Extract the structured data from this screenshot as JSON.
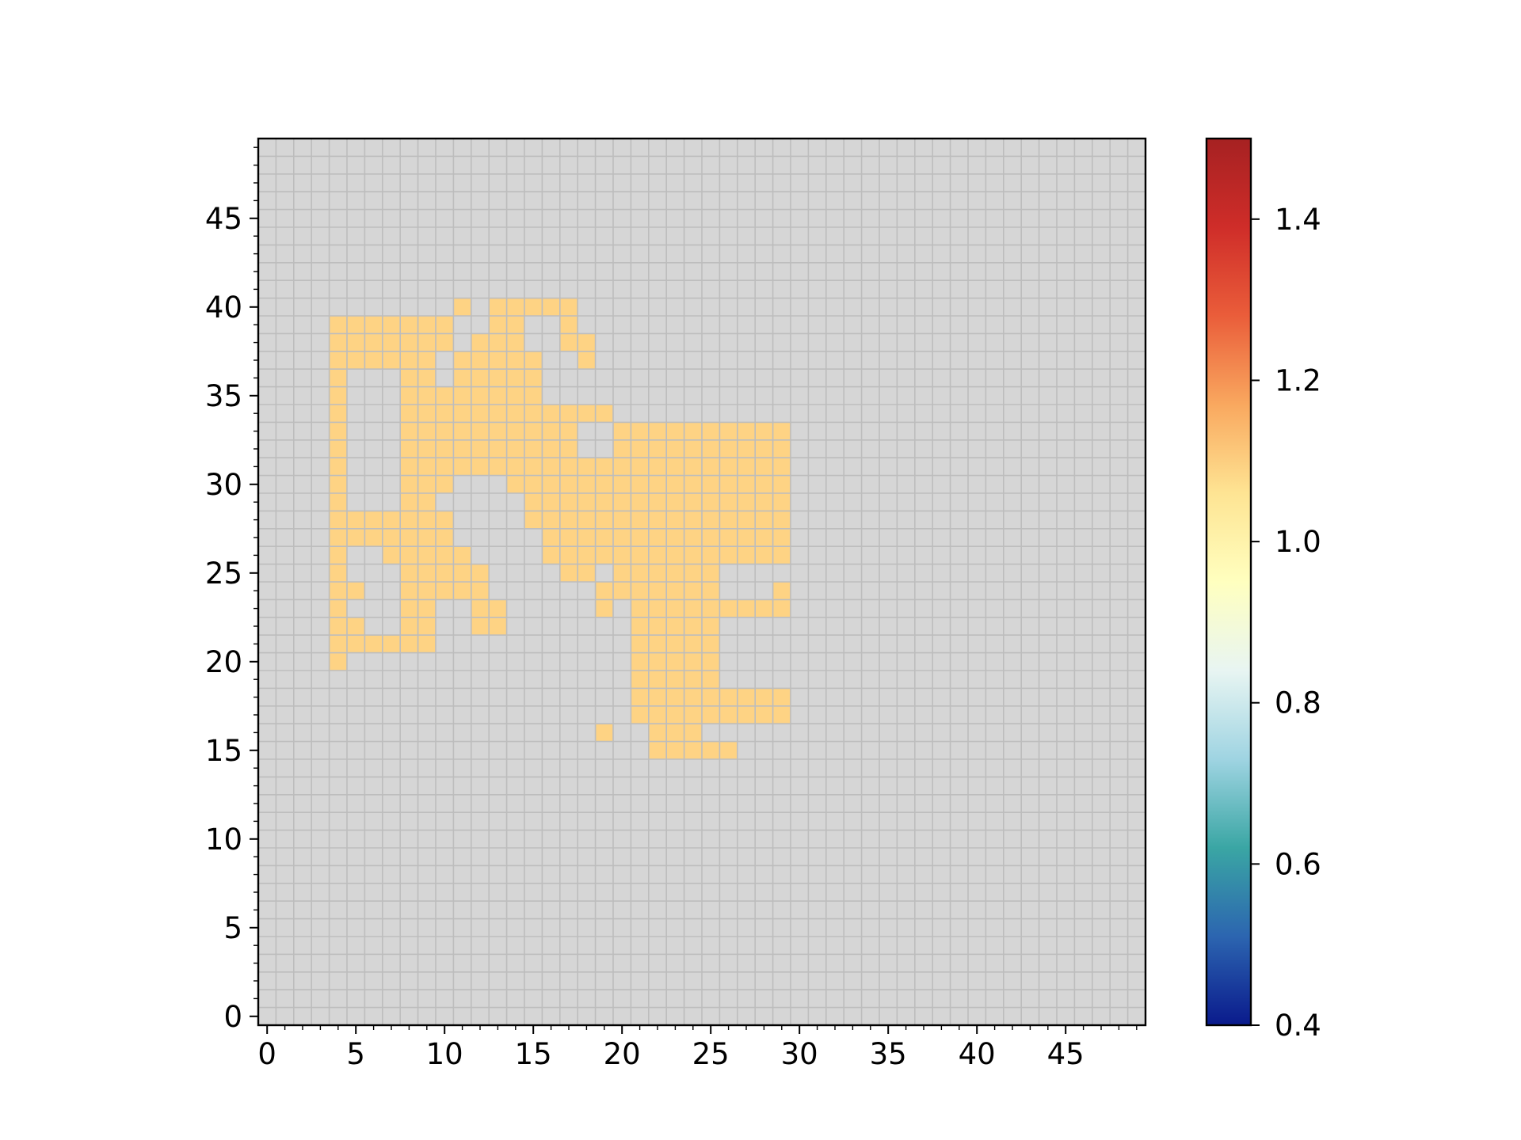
{
  "chart_data": {
    "type": "heatmap",
    "title": "",
    "xlabel": "",
    "ylabel": "",
    "xlim": [
      -0.5,
      49.5
    ],
    "ylim": [
      -0.5,
      49.5
    ],
    "grid": true,
    "colors": {
      "background_cell": "#d6d6d6",
      "gridline": "#bdbdbd",
      "value_1_cell": "#fed384"
    },
    "xticks": [
      0,
      5,
      10,
      15,
      20,
      25,
      30,
      35,
      40,
      45
    ],
    "xtick_labels": [
      "0",
      "5",
      "10",
      "15",
      "20",
      "25",
      "30",
      "35",
      "40",
      "45"
    ],
    "yticks": [
      0,
      5,
      10,
      15,
      20,
      25,
      30,
      35,
      40,
      45
    ],
    "ytick_labels": [
      "0",
      "5",
      "10",
      "15",
      "20",
      "25",
      "30",
      "35",
      "40",
      "45"
    ],
    "colorbar": {
      "colormap": "RdYlBu_r",
      "range": [
        0.4,
        1.5
      ],
      "ticks": [
        0.4,
        0.6,
        0.8,
        1.0,
        1.2,
        1.4
      ],
      "tick_labels": [
        "0.4",
        "0.6",
        "0.8",
        "1.0",
        "1.2",
        "1.4"
      ],
      "stops": [
        "#0a1a8c",
        "#2c65b0",
        "#3aa6a4",
        "#9fd4e2",
        "#e8f5f2",
        "#ffffbf",
        "#fee493",
        "#f9a85f",
        "#ea5d3a",
        "#cf2d29",
        "#a62122"
      ]
    },
    "value": 1.0,
    "rows": [
      {
        "y": 40,
        "x": [
          [
            11,
            11
          ],
          [
            13,
            17
          ]
        ]
      },
      {
        "y": 39,
        "x": [
          [
            4,
            10
          ],
          [
            13,
            14
          ],
          [
            17,
            17
          ]
        ]
      },
      {
        "y": 38,
        "x": [
          [
            4,
            10
          ],
          [
            12,
            14
          ],
          [
            17,
            18
          ]
        ]
      },
      {
        "y": 37,
        "x": [
          [
            4,
            9
          ],
          [
            11,
            15
          ],
          [
            18,
            18
          ]
        ]
      },
      {
        "y": 36,
        "x": [
          [
            4,
            4
          ],
          [
            8,
            9
          ],
          [
            11,
            15
          ]
        ]
      },
      {
        "y": 35,
        "x": [
          [
            4,
            4
          ],
          [
            8,
            9
          ],
          [
            10,
            15
          ]
        ]
      },
      {
        "y": 34,
        "x": [
          [
            4,
            4
          ],
          [
            8,
            19
          ]
        ]
      },
      {
        "y": 33,
        "x": [
          [
            4,
            4
          ],
          [
            8,
            17
          ],
          [
            20,
            29
          ]
        ]
      },
      {
        "y": 32,
        "x": [
          [
            4,
            4
          ],
          [
            8,
            17
          ],
          [
            20,
            29
          ]
        ]
      },
      {
        "y": 31,
        "x": [
          [
            4,
            4
          ],
          [
            8,
            29
          ]
        ]
      },
      {
        "y": 30,
        "x": [
          [
            4,
            4
          ],
          [
            8,
            10
          ],
          [
            14,
            29
          ]
        ]
      },
      {
        "y": 29,
        "x": [
          [
            4,
            4
          ],
          [
            8,
            9
          ],
          [
            15,
            29
          ]
        ]
      },
      {
        "y": 28,
        "x": [
          [
            4,
            10
          ],
          [
            15,
            29
          ]
        ]
      },
      {
        "y": 27,
        "x": [
          [
            4,
            10
          ],
          [
            16,
            29
          ]
        ]
      },
      {
        "y": 26,
        "x": [
          [
            4,
            4
          ],
          [
            7,
            11
          ],
          [
            16,
            29
          ]
        ]
      },
      {
        "y": 25,
        "x": [
          [
            4,
            4
          ],
          [
            8,
            12
          ],
          [
            17,
            18
          ],
          [
            20,
            25
          ]
        ]
      },
      {
        "y": 24,
        "x": [
          [
            4,
            5
          ],
          [
            8,
            12
          ],
          [
            19,
            25
          ],
          [
            29,
            29
          ]
        ]
      },
      {
        "y": 23,
        "x": [
          [
            4,
            4
          ],
          [
            8,
            9
          ],
          [
            12,
            13
          ],
          [
            19,
            19
          ],
          [
            21,
            29
          ]
        ]
      },
      {
        "y": 22,
        "x": [
          [
            4,
            5
          ],
          [
            8,
            9
          ],
          [
            12,
            13
          ],
          [
            21,
            25
          ]
        ]
      },
      {
        "y": 21,
        "x": [
          [
            4,
            9
          ],
          [
            21,
            25
          ]
        ]
      },
      {
        "y": 20,
        "x": [
          [
            4,
            4
          ],
          [
            21,
            25
          ]
        ]
      },
      {
        "y": 19,
        "x": [
          [
            21,
            25
          ]
        ]
      },
      {
        "y": 18,
        "x": [
          [
            21,
            21
          ],
          [
            22,
            29
          ]
        ]
      },
      {
        "y": 17,
        "x": [
          [
            21,
            29
          ]
        ]
      },
      {
        "y": 16,
        "x": [
          [
            19,
            19
          ],
          [
            22,
            24
          ]
        ]
      },
      {
        "y": 15,
        "x": [
          [
            22,
            26
          ]
        ]
      }
    ]
  }
}
